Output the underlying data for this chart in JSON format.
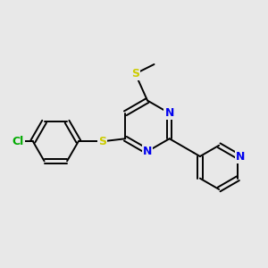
{
  "bg_color": "#e8e8e8",
  "bond_color": "#000000",
  "N_color": "#0000ee",
  "S_color": "#cccc00",
  "Cl_color": "#00aa00",
  "line_width": 1.4,
  "figsize": [
    3.0,
    3.0
  ],
  "dpi": 100,
  "xlim": [
    0,
    10
  ],
  "ylim": [
    0,
    10
  ]
}
